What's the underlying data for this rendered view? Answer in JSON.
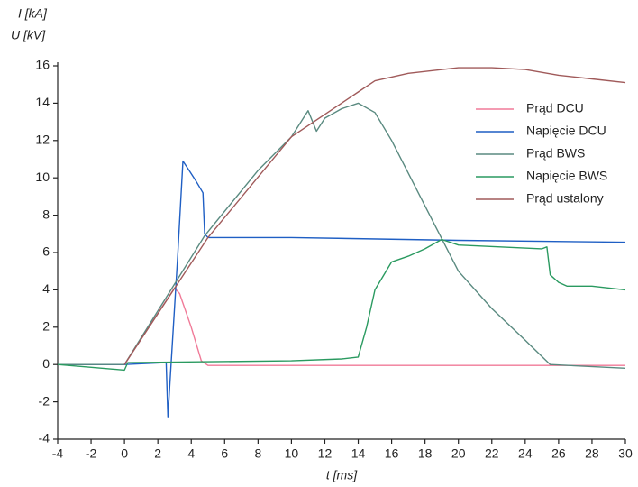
{
  "chart_data": {
    "type": "line",
    "y_label_1": "I [kA]",
    "y_label_2": "U [kV]",
    "x_label": "t [ms]",
    "xlim": [
      -4,
      30
    ],
    "ylim": [
      -4,
      16
    ],
    "xticks": [
      -4,
      -2,
      0,
      2,
      4,
      6,
      8,
      10,
      12,
      14,
      16,
      18,
      20,
      22,
      24,
      26,
      28,
      30
    ],
    "yticks": [
      -4,
      -2,
      0,
      2,
      4,
      6,
      8,
      10,
      12,
      14,
      16
    ],
    "grid": false,
    "legend": "upper right",
    "series": [
      {
        "name": "Prąd DCU",
        "color": "#f07a98",
        "x": [
          -4,
          0,
          3,
          3.3,
          4,
          4.6,
          5,
          30
        ],
        "values": [
          0,
          0,
          4.1,
          3.8,
          2,
          0.2,
          -0.05,
          -0.05
        ]
      },
      {
        "name": "Napięcie DCU",
        "color": "#1f5fc4",
        "x": [
          -4,
          0,
          2.5,
          2.6,
          3.2,
          3.5,
          3.8,
          4.3,
          4.7,
          4.8,
          5,
          10,
          20,
          30
        ],
        "values": [
          0,
          0,
          0.1,
          -2.8,
          6,
          10.9,
          10.5,
          9.8,
          9.2,
          7,
          6.8,
          6.8,
          6.65,
          6.55
        ]
      },
      {
        "name": "Prąd BWS",
        "color": "#5a8a80",
        "x": [
          -4,
          0,
          4.8,
          8,
          10,
          11,
          11.5,
          12,
          13,
          14,
          15,
          16,
          18,
          20,
          22,
          24,
          25.5,
          30
        ],
        "values": [
          0,
          0,
          6.9,
          10.4,
          12.2,
          13.6,
          12.5,
          13.2,
          13.7,
          14,
          13.5,
          12,
          8.5,
          5,
          3,
          1.3,
          0,
          -0.2
        ]
      },
      {
        "name": "Napięcie BWS",
        "color": "#2a9a60",
        "x": [
          -4,
          0,
          0.2,
          10,
          13,
          14,
          14.5,
          15,
          16,
          17,
          18,
          19,
          20,
          25,
          25.3,
          25.5,
          26,
          26.5,
          28,
          30
        ],
        "values": [
          0,
          -0.3,
          0.1,
          0.2,
          0.3,
          0.4,
          2,
          4,
          5.5,
          5.8,
          6.2,
          6.7,
          6.4,
          6.2,
          6.3,
          4.8,
          4.4,
          4.2,
          4.2,
          4.0
        ]
      },
      {
        "name": "Prąd ustalony",
        "color": "#a05a5a",
        "x": [
          0,
          5,
          10,
          13,
          14,
          15,
          17,
          20,
          22,
          24,
          26,
          28,
          30
        ],
        "values": [
          0,
          6.8,
          12.2,
          14,
          14.6,
          15.2,
          15.6,
          15.9,
          15.9,
          15.8,
          15.5,
          15.3,
          15.1
        ]
      }
    ]
  }
}
